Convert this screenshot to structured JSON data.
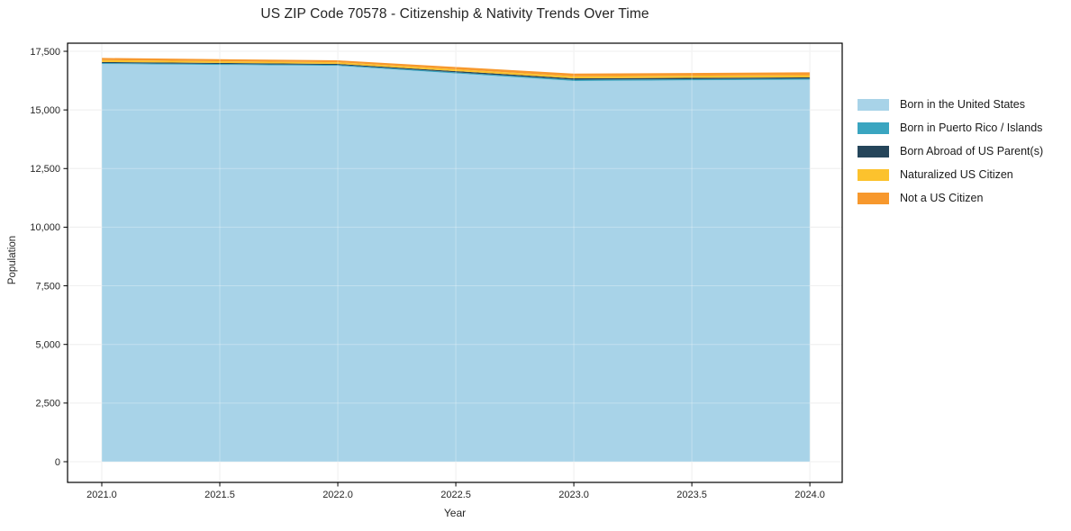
{
  "chart_data": {
    "type": "area",
    "stacked": true,
    "title": "US ZIP Code 70578 - Citizenship & Nativity Trends Over Time",
    "xlabel": "Year",
    "ylabel": "Population",
    "grid": true,
    "legend_position": "right-outside",
    "x": [
      2021,
      2022,
      2023,
      2024
    ],
    "series": [
      {
        "name": "Born in the United States",
        "color": "#a8d3e8",
        "values": [
          16960,
          16880,
          16235,
          16290
        ]
      },
      {
        "name": "Born in Puerto Rico / Islands",
        "color": "#3aa5c0",
        "values": [
          40,
          38,
          55,
          45
        ]
      },
      {
        "name": "Born Abroad of US Parent(s)",
        "color": "#25455a",
        "values": [
          45,
          42,
          58,
          52
        ]
      },
      {
        "name": "Naturalized US Citizen",
        "color": "#fcc22d",
        "values": [
          80,
          72,
          88,
          95
        ]
      },
      {
        "name": "Not a US Citizen",
        "color": "#f7982d",
        "values": [
          90,
          82,
          112,
          122
        ]
      }
    ],
    "x_ticks": {
      "values": [
        2021.0,
        2021.5,
        2022.0,
        2022.5,
        2023.0,
        2023.5,
        2024.0
      ],
      "labels": [
        "2021.0",
        "2021.5",
        "2022.0",
        "2022.5",
        "2023.0",
        "2023.5",
        "2024.0"
      ]
    },
    "y_ticks": {
      "values": [
        0,
        2500,
        5000,
        7500,
        10000,
        12500,
        15000,
        17500
      ],
      "labels": [
        "0",
        "2,500",
        "5,000",
        "7,500",
        "10,000",
        "12,500",
        "15,000",
        "17,500"
      ]
    },
    "xlim": [
      2020.855,
      2024.137
    ],
    "ylim": [
      -883,
      17845
    ],
    "colors": {
      "spine": "#000000",
      "grid": "#e9e9e9",
      "background": "#ffffff"
    }
  }
}
